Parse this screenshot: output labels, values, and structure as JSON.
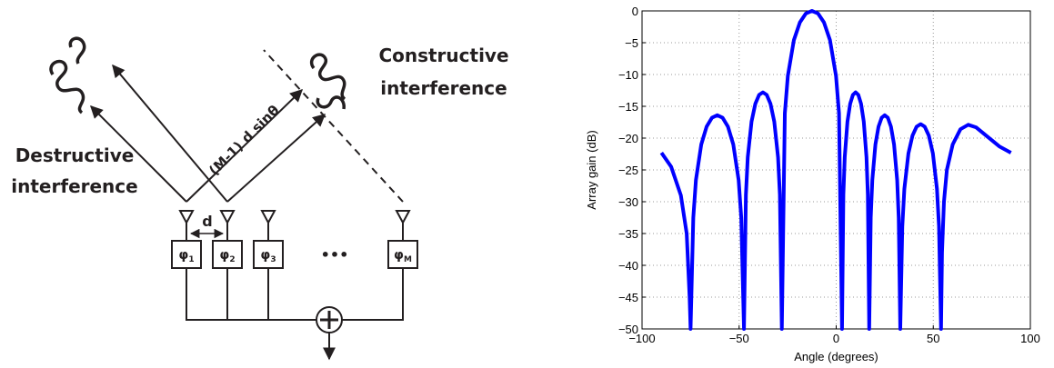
{
  "diagram": {
    "constructive": [
      "Constructive",
      "interference"
    ],
    "destructive": [
      "Destructive",
      "interference"
    ],
    "path_difference": "(M-1) d sinθ",
    "spacing": "d",
    "phase_shifters": [
      {
        "symbol": "φ",
        "index": "1"
      },
      {
        "symbol": "φ",
        "index": "2"
      },
      {
        "symbol": "φ",
        "index": "3"
      },
      {
        "symbol": "φ",
        "index": "M"
      }
    ],
    "ellipsis": "•••"
  },
  "chart_data": {
    "type": "line",
    "xlabel": "Angle (degrees)",
    "ylabel": "Array gain (dB)",
    "xlim": [
      -100,
      100
    ],
    "ylim": [
      -50,
      0
    ],
    "xticks": [
      {
        "value": -100,
        "label": "−100"
      },
      {
        "value": -50,
        "label": "−50"
      },
      0,
      50,
      100
    ],
    "yticks": [
      0,
      {
        "value": -5,
        "label": "−5"
      },
      {
        "value": -10,
        "label": "−10"
      },
      {
        "value": -15,
        "label": "−15"
      },
      {
        "value": -20,
        "label": "−20"
      },
      {
        "value": -25,
        "label": "−25"
      },
      {
        "value": -30,
        "label": "−30"
      },
      {
        "value": -35,
        "label": "−35"
      },
      {
        "value": -40,
        "label": "−40"
      },
      {
        "value": -45,
        "label": "−45"
      },
      {
        "value": -50,
        "label": "−50"
      }
    ],
    "grid": true,
    "series": [
      {
        "color": "#0000ff",
        "x": [
          -90,
          -85,
          -80,
          -77,
          -75.5,
          -75,
          -73.6,
          -72.25,
          -69.5,
          -66.75,
          -64,
          -61.25,
          -58.5,
          -55.75,
          -53,
          -50.25,
          -48.9,
          -47.5,
          -46.5,
          -45.55,
          -43.6,
          -41.65,
          -39.7,
          -37.75,
          -35.8,
          -33.85,
          -31.9,
          -29.95,
          -29,
          -28,
          -26.45,
          -24.9,
          -21.8,
          -18.7,
          -15.6,
          -12.5,
          -9.4,
          -6.3,
          -3.2,
          -0.1,
          1.45,
          3,
          3.7,
          4.4,
          5.8,
          7.2,
          8.6,
          10,
          11.4,
          12.8,
          14.2,
          15.6,
          16.3,
          17,
          17.8,
          18.6,
          20.2,
          21.8,
          23.4,
          25,
          26.6,
          28.2,
          29.8,
          31.4,
          32.2,
          33,
          34.05,
          35.1,
          37.2,
          39.3,
          41.4,
          43.5,
          45.6,
          47.7,
          49.8,
          51.9,
          52.95,
          54,
          54.5,
          55.5,
          57,
          60,
          64,
          68,
          72,
          78,
          84,
          90
        ],
        "values": [
          -22.3,
          -24.5,
          -29,
          -35,
          -45,
          -50,
          -32.5,
          -26.6,
          -21,
          -18.2,
          -16.8,
          -16.4,
          -16.8,
          -18.2,
          -21,
          -26.6,
          -32.5,
          -50,
          -28.9,
          -23,
          -17.4,
          -14.6,
          -13.2,
          -12.8,
          -13.2,
          -14.6,
          -17.4,
          -23,
          -28.9,
          -50,
          -16.1,
          -10.2,
          -4.6,
          -1.8,
          -0.4,
          0,
          -0.4,
          -1.8,
          -4.6,
          -10.2,
          -16.1,
          -50,
          -28.9,
          -23,
          -17.4,
          -14.6,
          -13.2,
          -12.8,
          -13.2,
          -14.6,
          -17.4,
          -23,
          -28.9,
          -50,
          -32.5,
          -26.6,
          -21,
          -18.2,
          -16.8,
          -16.4,
          -16.8,
          -18.2,
          -21,
          -26.6,
          -32.5,
          -50,
          -33.9,
          -28,
          -22.4,
          -19.6,
          -18.2,
          -17.8,
          -18.2,
          -19.6,
          -22.4,
          -28,
          -33.9,
          -50,
          -38,
          -30,
          -25,
          -21,
          -18.6,
          -17.9,
          -18.3,
          -19.8,
          -21.3,
          -22.3
        ]
      }
    ]
  }
}
